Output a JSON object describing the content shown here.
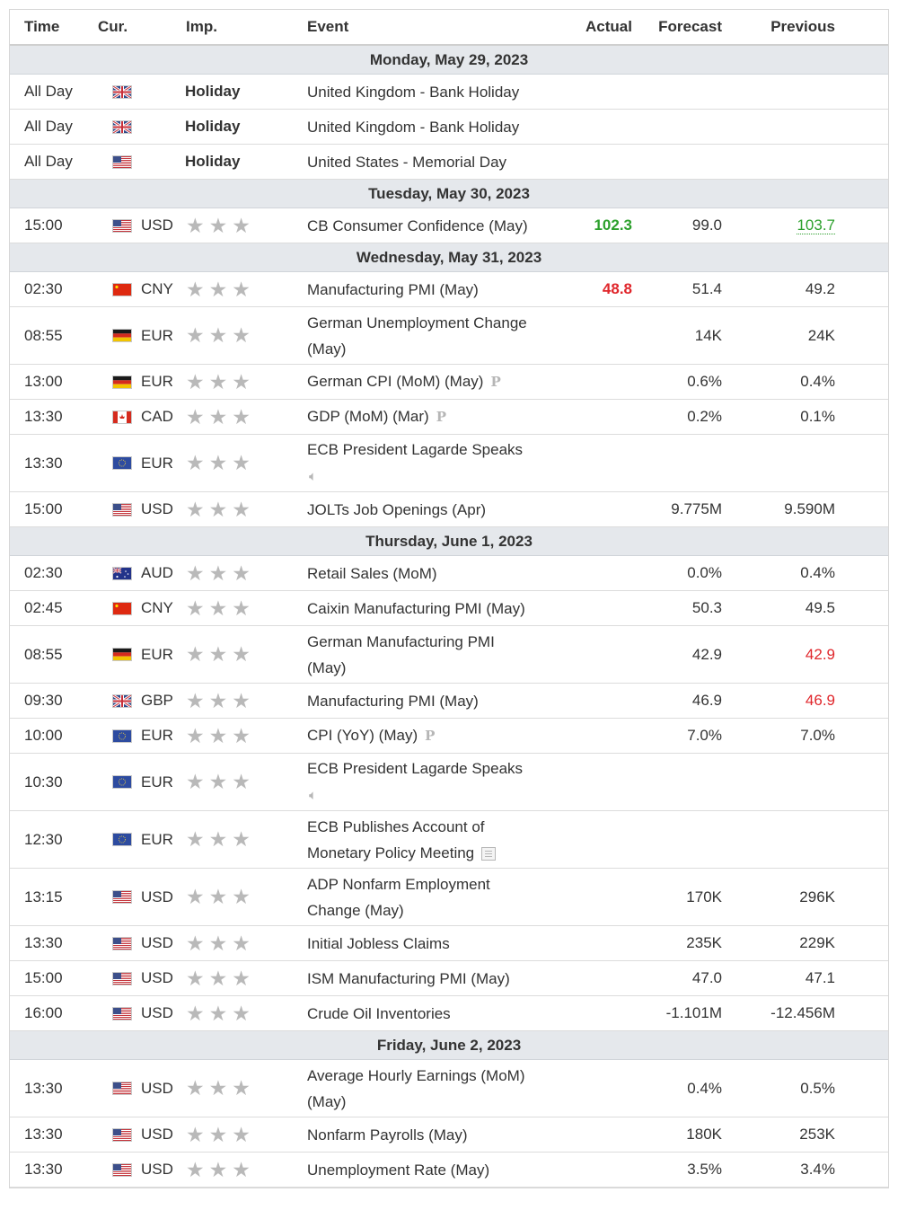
{
  "headers": {
    "time": "Time",
    "currency": "Cur.",
    "importance": "Imp.",
    "event": "Event",
    "actual": "Actual",
    "forecast": "Forecast",
    "previous": "Previous"
  },
  "colors": {
    "positive": "#2ca02c",
    "negative": "#e0262b",
    "date_row_bg": "#e5e8ec",
    "star": "#b9b9b9"
  },
  "days": [
    {
      "date": "Monday, May 29, 2023",
      "events": [
        {
          "time": "All Day",
          "flag": "uk-flag-icon",
          "currency": "",
          "holiday": "Holiday",
          "lines": [
            "United Kingdom - Bank Holiday"
          ]
        },
        {
          "time": "All Day",
          "flag": "uk-flag-icon",
          "currency": "",
          "holiday": "Holiday",
          "lines": [
            "United Kingdom - Bank Holiday"
          ]
        },
        {
          "time": "All Day",
          "flag": "us-flag-icon",
          "currency": "",
          "holiday": "Holiday",
          "lines": [
            "United States - Memorial Day"
          ]
        }
      ]
    },
    {
      "date": "Tuesday, May 30, 2023",
      "events": [
        {
          "time": "15:00",
          "flag": "us-flag-icon",
          "currency": "USD",
          "lines": [
            "CB Consumer Confidence (May)"
          ],
          "actual": "102.3",
          "actual_style": "green",
          "forecast": "99.0",
          "previous": "103.7",
          "previous_style": "green-dotted"
        }
      ]
    },
    {
      "date": "Wednesday, May 31, 2023",
      "events": [
        {
          "time": "02:30",
          "flag": "cn-flag-icon",
          "currency": "CNY",
          "lines": [
            "Manufacturing PMI (May)"
          ],
          "actual": "48.8",
          "actual_style": "red",
          "forecast": "51.4",
          "previous": "49.2"
        },
        {
          "time": "08:55",
          "flag": "de-flag-icon",
          "currency": "EUR",
          "lines": [
            "German Unemployment Change",
            "(May)"
          ],
          "actual": "",
          "forecast": "14K",
          "previous": "24K"
        },
        {
          "time": "13:00",
          "flag": "de-flag-icon",
          "currency": "EUR",
          "lines": [
            "German CPI (MoM) (May)"
          ],
          "icon": "preliminary-icon",
          "icon_text": "P",
          "actual": "",
          "forecast": "0.6%",
          "previous": "0.4%"
        },
        {
          "time": "13:30",
          "flag": "ca-flag-icon",
          "currency": "CAD",
          "lines": [
            "GDP (MoM) (Mar)"
          ],
          "icon": "preliminary-icon",
          "icon_text": "P",
          "actual": "",
          "forecast": "0.2%",
          "previous": "0.1%"
        },
        {
          "time": "13:30",
          "flag": "eu-flag-icon",
          "currency": "EUR",
          "lines": [
            "ECB President Lagarde Speaks"
          ],
          "second_line_icon": "speaker-icon",
          "actual": "",
          "forecast": "",
          "previous": ""
        },
        {
          "time": "15:00",
          "flag": "us-flag-icon",
          "currency": "USD",
          "lines": [
            "JOLTs Job Openings (Apr)"
          ],
          "actual": "",
          "forecast": "9.775M",
          "previous": "9.590M"
        }
      ]
    },
    {
      "date": "Thursday, June 1, 2023",
      "events": [
        {
          "time": "02:30",
          "flag": "au-flag-icon",
          "currency": "AUD",
          "lines": [
            "Retail Sales (MoM)"
          ],
          "actual": "",
          "forecast": "0.0%",
          "previous": "0.4%"
        },
        {
          "time": "02:45",
          "flag": "cn-flag-icon",
          "currency": "CNY",
          "lines": [
            "Caixin Manufacturing PMI (May)"
          ],
          "actual": "",
          "forecast": "50.3",
          "previous": "49.5"
        },
        {
          "time": "08:55",
          "flag": "de-flag-icon",
          "currency": "EUR",
          "lines": [
            "German Manufacturing PMI",
            "(May)"
          ],
          "actual": "",
          "forecast": "42.9",
          "previous": "42.9",
          "previous_style": "red-plain"
        },
        {
          "time": "09:30",
          "flag": "uk-flag-icon",
          "currency": "GBP",
          "lines": [
            "Manufacturing PMI (May)"
          ],
          "actual": "",
          "forecast": "46.9",
          "previous": "46.9",
          "previous_style": "red-plain"
        },
        {
          "time": "10:00",
          "flag": "eu-flag-icon",
          "currency": "EUR",
          "lines": [
            "CPI (YoY) (May)"
          ],
          "icon": "preliminary-icon",
          "icon_text": "P",
          "actual": "",
          "forecast": "7.0%",
          "previous": "7.0%"
        },
        {
          "time": "10:30",
          "flag": "eu-flag-icon",
          "currency": "EUR",
          "lines": [
            "ECB President Lagarde Speaks"
          ],
          "second_line_icon": "speaker-icon",
          "actual": "",
          "forecast": "",
          "previous": ""
        },
        {
          "time": "12:30",
          "flag": "eu-flag-icon",
          "currency": "EUR",
          "lines": [
            "ECB Publishes Account of",
            "Monetary Policy Meeting"
          ],
          "icon": "document-icon",
          "actual": "",
          "forecast": "",
          "previous": ""
        },
        {
          "time": "13:15",
          "flag": "us-flag-icon",
          "currency": "USD",
          "lines": [
            "ADP Nonfarm Employment",
            "Change (May)"
          ],
          "actual": "",
          "forecast": "170K",
          "previous": "296K"
        },
        {
          "time": "13:30",
          "flag": "us-flag-icon",
          "currency": "USD",
          "lines": [
            "Initial Jobless Claims"
          ],
          "actual": "",
          "forecast": "235K",
          "previous": "229K"
        },
        {
          "time": "15:00",
          "flag": "us-flag-icon",
          "currency": "USD",
          "lines": [
            "ISM Manufacturing PMI (May)"
          ],
          "actual": "",
          "forecast": "47.0",
          "previous": "47.1"
        },
        {
          "time": "16:00",
          "flag": "us-flag-icon",
          "currency": "USD",
          "lines": [
            "Crude Oil Inventories"
          ],
          "actual": "",
          "forecast": "-1.101M",
          "previous": "-12.456M"
        }
      ]
    },
    {
      "date": "Friday, June 2, 2023",
      "events": [
        {
          "time": "13:30",
          "flag": "us-flag-icon",
          "currency": "USD",
          "lines": [
            "Average Hourly Earnings (MoM)",
            "(May)"
          ],
          "actual": "",
          "forecast": "0.4%",
          "previous": "0.5%"
        },
        {
          "time": "13:30",
          "flag": "us-flag-icon",
          "currency": "USD",
          "lines": [
            "Nonfarm Payrolls (May)"
          ],
          "actual": "",
          "forecast": "180K",
          "previous": "253K"
        },
        {
          "time": "13:30",
          "flag": "us-flag-icon",
          "currency": "USD",
          "lines": [
            "Unemployment Rate (May)"
          ],
          "actual": "",
          "forecast": "3.5%",
          "previous": "3.4%"
        }
      ]
    }
  ]
}
